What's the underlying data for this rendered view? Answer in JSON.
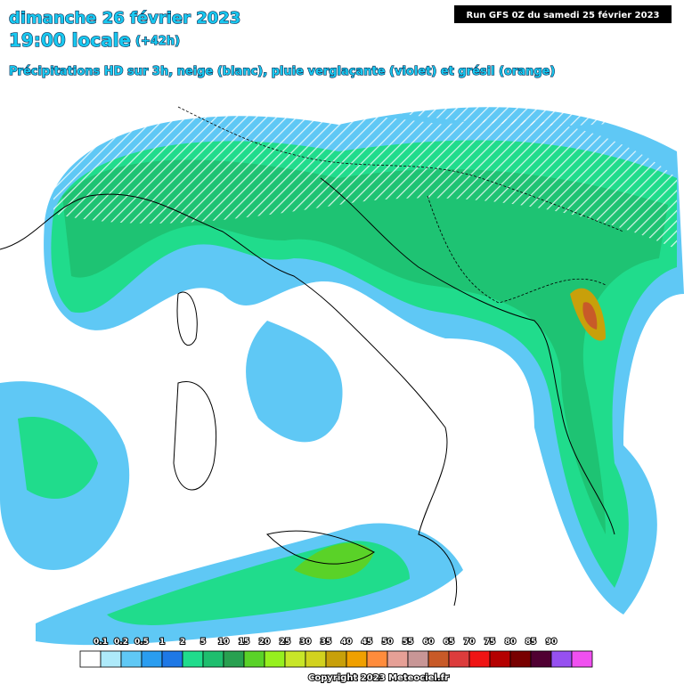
{
  "header": {
    "title": "dimanche 26 février 2023",
    "subtitle": "19:00 locale",
    "lead": "(+42h)",
    "description": "Précipitations HD sur 3h, neige (blanc), pluie verglaçante (violet) et grésil (orange)"
  },
  "run_label": "Run GFS 0Z du samedi 25 février 2023",
  "legend": {
    "labels": [
      "0.1",
      "0.2",
      "0.5",
      "1",
      "2",
      "5",
      "10",
      "15",
      "20",
      "25",
      "30",
      "35",
      "40",
      "45",
      "50",
      "55",
      "60",
      "65",
      "70",
      "75",
      "80",
      "85",
      "90"
    ],
    "colors": [
      "#ffffff",
      "#aeeafa",
      "#5fc8f5",
      "#2a9df0",
      "#1e78e6",
      "#20dc8c",
      "#1ebe6e",
      "#28a050",
      "#5ad228",
      "#96f01e",
      "#c8e628",
      "#d2d21e",
      "#c8a00a",
      "#f0a000",
      "#ff8c3c",
      "#e6a096",
      "#c89696",
      "#c85a28",
      "#dc3c3c",
      "#f01414",
      "#b40000",
      "#780000",
      "#500032",
      "#9650f0",
      "#f050f0"
    ]
  },
  "copyright": "Copyright 2023 Meteociel.fr"
}
